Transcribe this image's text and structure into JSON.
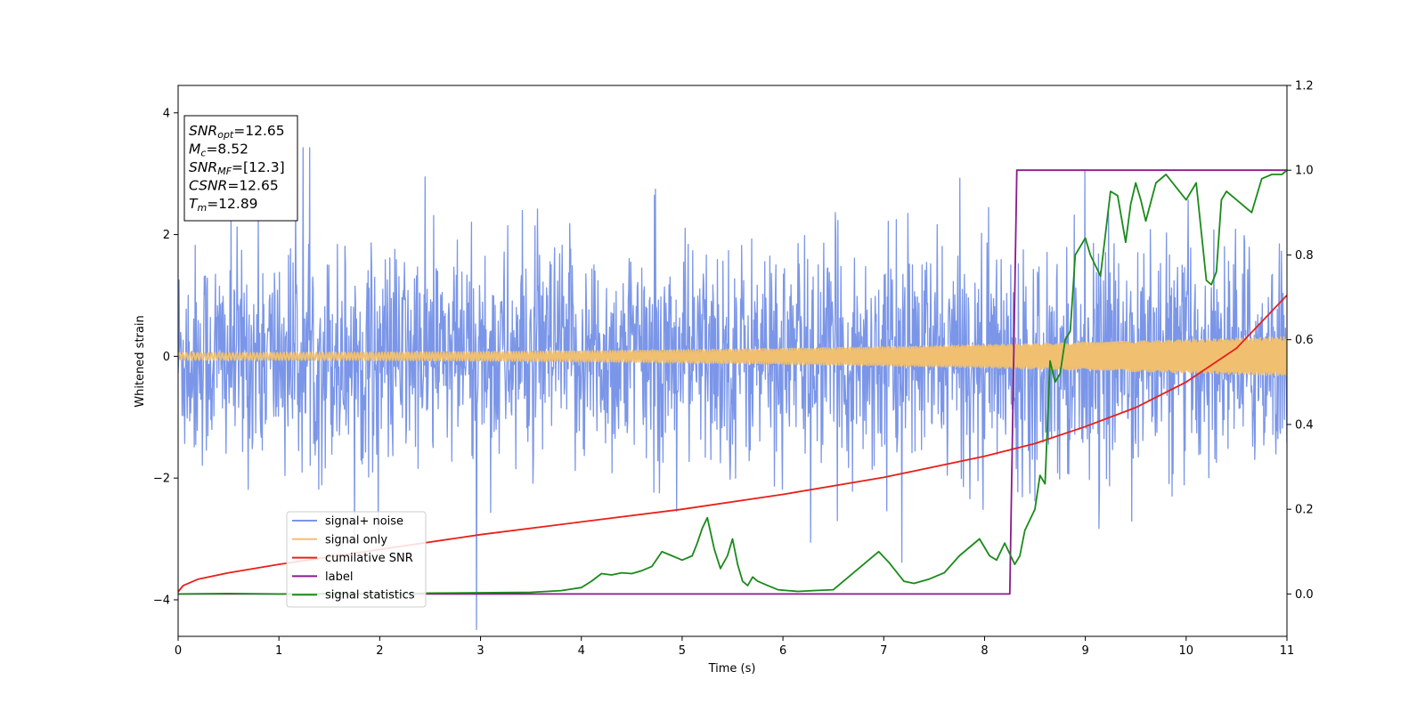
{
  "chart_data": {
    "type": "line",
    "xlabel": "Time (s)",
    "ylabel": "Whitened strain",
    "xlim": [
      0,
      11
    ],
    "ylim": [
      -4.6,
      4.45
    ],
    "y2lim": [
      -0.1,
      1.2
    ],
    "xticks": [
      0,
      1,
      2,
      3,
      4,
      5,
      6,
      7,
      8,
      9,
      10,
      11
    ],
    "yticks": [
      -4,
      -2,
      0,
      2,
      4
    ],
    "y2ticks": [
      0.0,
      0.2,
      0.4,
      0.6,
      0.8,
      1.0,
      1.2
    ],
    "grid": false,
    "legend_position": "lower-left",
    "annotation": {
      "lines": [
        {
          "sym": "SNR",
          "sub": "opt",
          "value": "=12.65"
        },
        {
          "sym": "M",
          "sub": "c",
          "value": "=8.52"
        },
        {
          "sym": "SNR",
          "sub": "MF",
          "value": "=[12.3]"
        },
        {
          "sym": "CSNR",
          "sub": "",
          "value": "=12.65"
        },
        {
          "sym": "T",
          "sub": "m",
          "value": "=12.89"
        }
      ]
    },
    "series": [
      {
        "name": "signal+ noise",
        "color": "#7b96e8",
        "axis": "left",
        "kind": "noise",
        "sigma": 0.9,
        "samples": 2200
      },
      {
        "name": "signal only",
        "color": "#f0c070",
        "axis": "left",
        "kind": "chirp",
        "amp_start": 0.06,
        "amp_end": 0.32,
        "cycles": 300
      },
      {
        "name": "cumilative SNR",
        "color": "#e8201a",
        "axis": "right",
        "x": [
          0,
          0.05,
          0.2,
          0.5,
          1,
          2,
          3,
          4,
          5,
          6,
          7,
          8,
          8.5,
          9,
          9.5,
          10,
          10.5,
          11
        ],
        "y": [
          0.005,
          0.02,
          0.035,
          0.05,
          0.07,
          0.105,
          0.14,
          0.17,
          0.2,
          0.235,
          0.275,
          0.325,
          0.355,
          0.395,
          0.44,
          0.5,
          0.58,
          0.705
        ]
      },
      {
        "name": "label",
        "color": "#8b1a8b",
        "axis": "right",
        "x": [
          0,
          8.25,
          8.32,
          11
        ],
        "y": [
          0,
          0,
          1,
          1
        ]
      },
      {
        "name": "signal statistics",
        "color": "#1a8a1a",
        "axis": "right",
        "x": [
          0,
          0.5,
          1,
          1.5,
          2,
          2.5,
          3,
          3.5,
          3.8,
          4.0,
          4.1,
          4.2,
          4.3,
          4.4,
          4.5,
          4.6,
          4.7,
          4.8,
          4.9,
          5.0,
          5.1,
          5.15,
          5.2,
          5.25,
          5.32,
          5.38,
          5.45,
          5.5,
          5.55,
          5.6,
          5.65,
          5.7,
          5.75,
          5.85,
          5.95,
          6.05,
          6.15,
          6.3,
          6.5,
          6.7,
          6.85,
          6.95,
          7.05,
          7.2,
          7.3,
          7.45,
          7.6,
          7.75,
          7.85,
          7.95,
          8.05,
          8.12,
          8.2,
          8.3,
          8.35,
          8.4,
          8.5,
          8.55,
          8.6,
          8.65,
          8.7,
          8.75,
          8.8,
          8.85,
          8.9,
          9.0,
          9.05,
          9.15,
          9.25,
          9.32,
          9.4,
          9.45,
          9.5,
          9.55,
          9.6,
          9.7,
          9.8,
          9.9,
          10.0,
          10.1,
          10.2,
          10.25,
          10.3,
          10.35,
          10.4,
          10.45,
          10.55,
          10.6,
          10.65,
          10.75,
          10.85,
          10.95,
          11.0
        ],
        "y": [
          0,
          0.001,
          0,
          0.001,
          0,
          0.002,
          0.003,
          0.004,
          0.008,
          0.015,
          0.03,
          0.048,
          0.045,
          0.05,
          0.048,
          0.055,
          0.065,
          0.1,
          0.09,
          0.08,
          0.09,
          0.12,
          0.155,
          0.18,
          0.105,
          0.06,
          0.09,
          0.13,
          0.07,
          0.03,
          0.02,
          0.04,
          0.03,
          0.02,
          0.01,
          0.008,
          0.006,
          0.008,
          0.01,
          0.05,
          0.08,
          0.1,
          0.075,
          0.03,
          0.025,
          0.035,
          0.05,
          0.09,
          0.11,
          0.13,
          0.09,
          0.08,
          0.12,
          0.07,
          0.09,
          0.15,
          0.2,
          0.28,
          0.26,
          0.55,
          0.5,
          0.52,
          0.6,
          0.62,
          0.8,
          0.84,
          0.8,
          0.75,
          0.95,
          0.94,
          0.83,
          0.92,
          0.97,
          0.93,
          0.88,
          0.97,
          0.99,
          0.96,
          0.93,
          0.97,
          0.74,
          0.73,
          0.76,
          0.93,
          0.95,
          0.94,
          0.92,
          0.91,
          0.9,
          0.98,
          0.99,
          0.99,
          1.0
        ]
      }
    ]
  }
}
